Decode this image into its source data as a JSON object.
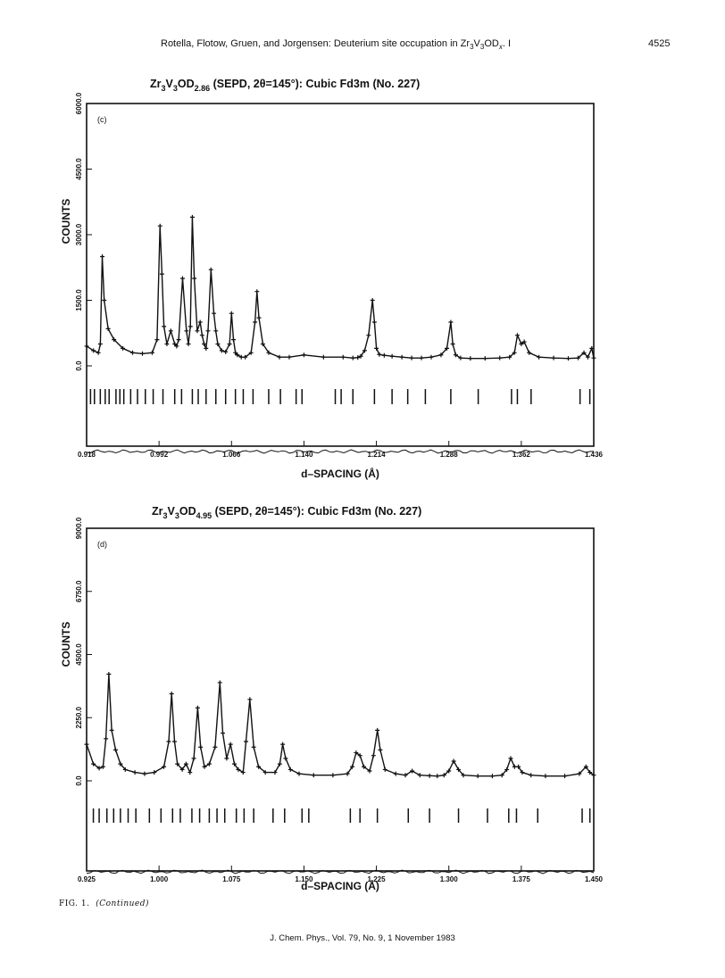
{
  "header": {
    "running_head": "Rotella, Flotow, Gruen, and Jorgensen: Deuterium site occupation in Zr",
    "formula_a": "3",
    "formula_b": "V",
    "formula_c": "3",
    "formula_d": "OD",
    "formula_e": "x",
    "formula_f": ". I",
    "page_number": "4525"
  },
  "caption": {
    "fig": "FIG. 1.",
    "note": "(Continued)"
  },
  "footer": "J. Chem. Phys., Vol. 79, No. 9, 1 November 1983",
  "chart_data": [
    {
      "type": "line",
      "panel_label": "(c)",
      "title_main": "Zr",
      "title_sub1": "3",
      "title_mid": "V",
      "title_sub2": "3",
      "title_od": "OD",
      "title_sub3": "2.86",
      "title_rest": " (SEPD, 2θ=145°):  Cubic Fd3m (No. 227)",
      "xlabel": "d–SPACING (Å)",
      "ylabel": "COUNTS",
      "xlim": [
        0.918,
        1.436
      ],
      "ylim": [
        0,
        6000
      ],
      "x_ticks": [
        "0.918",
        "0.992",
        "1.066",
        "1.140",
        "1.214",
        "1.288",
        "1.362",
        "1.436"
      ],
      "y_ticks": [
        "0.0",
        "1500.0",
        "3000.0",
        "4500.0",
        "6000.0"
      ],
      "series": [
        {
          "x": [
            0.918,
            0.925,
            0.93,
            0.932,
            0.934,
            0.936,
            0.94,
            0.946,
            0.955,
            0.965,
            0.975,
            0.985,
            0.99,
            0.993,
            0.995,
            0.997,
            1.0,
            1.004,
            1.008,
            1.01,
            1.012,
            1.016,
            1.02,
            1.022,
            1.024,
            1.026,
            1.028,
            1.031,
            1.034,
            1.036,
            1.038,
            1.04,
            1.042,
            1.045,
            1.048,
            1.05,
            1.052,
            1.056,
            1.06,
            1.064,
            1.066,
            1.068,
            1.07,
            1.072,
            1.076,
            1.08,
            1.086,
            1.09,
            1.092,
            1.094,
            1.098,
            1.104,
            1.115,
            1.125,
            1.14,
            1.16,
            1.18,
            1.19,
            1.195,
            1.198,
            1.202,
            1.206,
            1.21,
            1.212,
            1.214,
            1.217,
            1.222,
            1.23,
            1.24,
            1.25,
            1.26,
            1.27,
            1.28,
            1.286,
            1.29,
            1.292,
            1.295,
            1.3,
            1.31,
            1.325,
            1.34,
            1.35,
            1.355,
            1.358,
            1.362,
            1.365,
            1.37,
            1.38,
            1.395,
            1.41,
            1.42,
            1.426,
            1.43,
            1.434,
            1.436
          ],
          "y": [
            450,
            350,
            300,
            500,
            2500,
            1500,
            850,
            600,
            400,
            300,
            280,
            300,
            600,
            3200,
            2100,
            900,
            500,
            800,
            500,
            450,
            600,
            2000,
            800,
            500,
            900,
            3400,
            2000,
            800,
            1000,
            700,
            500,
            400,
            800,
            2200,
            1200,
            800,
            500,
            350,
            320,
            500,
            1200,
            600,
            300,
            250,
            200,
            200,
            300,
            1000,
            1700,
            1100,
            500,
            300,
            200,
            200,
            250,
            200,
            200,
            180,
            190,
            220,
            350,
            700,
            1500,
            1000,
            400,
            260,
            240,
            220,
            200,
            180,
            180,
            200,
            250,
            400,
            1000,
            500,
            250,
            180,
            170,
            170,
            180,
            200,
            300,
            700,
            500,
            550,
            300,
            200,
            180,
            170,
            180,
            300,
            200,
            400,
            180
          ]
        }
      ],
      "tick_marks_x": [
        0.922,
        0.926,
        0.932,
        0.937,
        0.941,
        0.948,
        0.952,
        0.956,
        0.963,
        0.97,
        0.978,
        0.986,
        0.996,
        1.008,
        1.015,
        1.026,
        1.032,
        1.04,
        1.05,
        1.06,
        1.07,
        1.078,
        1.088,
        1.104,
        1.116,
        1.132,
        1.138,
        1.172,
        1.178,
        1.19,
        1.212,
        1.23,
        1.246,
        1.264,
        1.29,
        1.318,
        1.352,
        1.358,
        1.372,
        1.422,
        1.432
      ]
    },
    {
      "type": "line",
      "panel_label": "(d)",
      "title_main": "Zr",
      "title_sub1": "3",
      "title_mid": "V",
      "title_sub2": "3",
      "title_od": "OD",
      "title_sub3": "4.95",
      "title_rest": " (SEPD, 2θ=145°):  Cubic Fd3m (No. 227)",
      "xlabel": "d–SPACING (Å)",
      "ylabel": "COUNTS",
      "xlim": [
        0.925,
        1.45
      ],
      "ylim": [
        0,
        9000
      ],
      "x_ticks": [
        "0.925",
        "1.000",
        "1.075",
        "1.150",
        "1.225",
        "1.300",
        "1.375",
        "1.450"
      ],
      "y_ticks": [
        "0.0",
        "2250.0",
        "4500.0",
        "6750.0",
        "9000.0"
      ],
      "series": [
        {
          "x": [
            0.925,
            0.932,
            0.938,
            0.942,
            0.945,
            0.948,
            0.951,
            0.955,
            0.96,
            0.965,
            0.975,
            0.985,
            0.995,
            1.005,
            1.01,
            1.013,
            1.016,
            1.019,
            1.024,
            1.028,
            1.032,
            1.036,
            1.04,
            1.043,
            1.047,
            1.052,
            1.058,
            1.063,
            1.066,
            1.07,
            1.074,
            1.078,
            1.082,
            1.087,
            1.09,
            1.094,
            1.098,
            1.103,
            1.11,
            1.12,
            1.125,
            1.128,
            1.131,
            1.136,
            1.145,
            1.16,
            1.18,
            1.195,
            1.2,
            1.204,
            1.208,
            1.212,
            1.218,
            1.222,
            1.226,
            1.229,
            1.234,
            1.245,
            1.255,
            1.262,
            1.27,
            1.28,
            1.288,
            1.295,
            1.3,
            1.305,
            1.31,
            1.315,
            1.33,
            1.345,
            1.355,
            1.36,
            1.364,
            1.368,
            1.372,
            1.376,
            1.385,
            1.4,
            1.42,
            1.435,
            1.442,
            1.446,
            1.45
          ],
          "y": [
            1300,
            600,
            450,
            500,
            1500,
            3800,
            1800,
            1100,
            600,
            400,
            300,
            250,
            300,
            500,
            1400,
            3100,
            1400,
            600,
            400,
            600,
            300,
            800,
            2600,
            1200,
            500,
            600,
            1200,
            3500,
            1700,
            800,
            1300,
            600,
            400,
            300,
            1400,
            2900,
            1200,
            500,
            300,
            300,
            600,
            1300,
            800,
            400,
            250,
            200,
            200,
            250,
            500,
            1000,
            900,
            500,
            350,
            900,
            1800,
            1100,
            400,
            250,
            200,
            350,
            200,
            180,
            170,
            200,
            350,
            700,
            400,
            200,
            170,
            170,
            200,
            400,
            800,
            500,
            500,
            300,
            200,
            170,
            170,
            250,
            500,
            300,
            200
          ]
        }
      ],
      "tick_marks_x": [
        0.932,
        0.938,
        0.946,
        0.953,
        0.96,
        0.968,
        0.976,
        0.99,
        1.002,
        1.014,
        1.022,
        1.034,
        1.042,
        1.052,
        1.06,
        1.068,
        1.08,
        1.088,
        1.098,
        1.118,
        1.13,
        1.148,
        1.155,
        1.198,
        1.208,
        1.226,
        1.258,
        1.28,
        1.31,
        1.34,
        1.362,
        1.37,
        1.392,
        1.438,
        1.446
      ]
    }
  ]
}
